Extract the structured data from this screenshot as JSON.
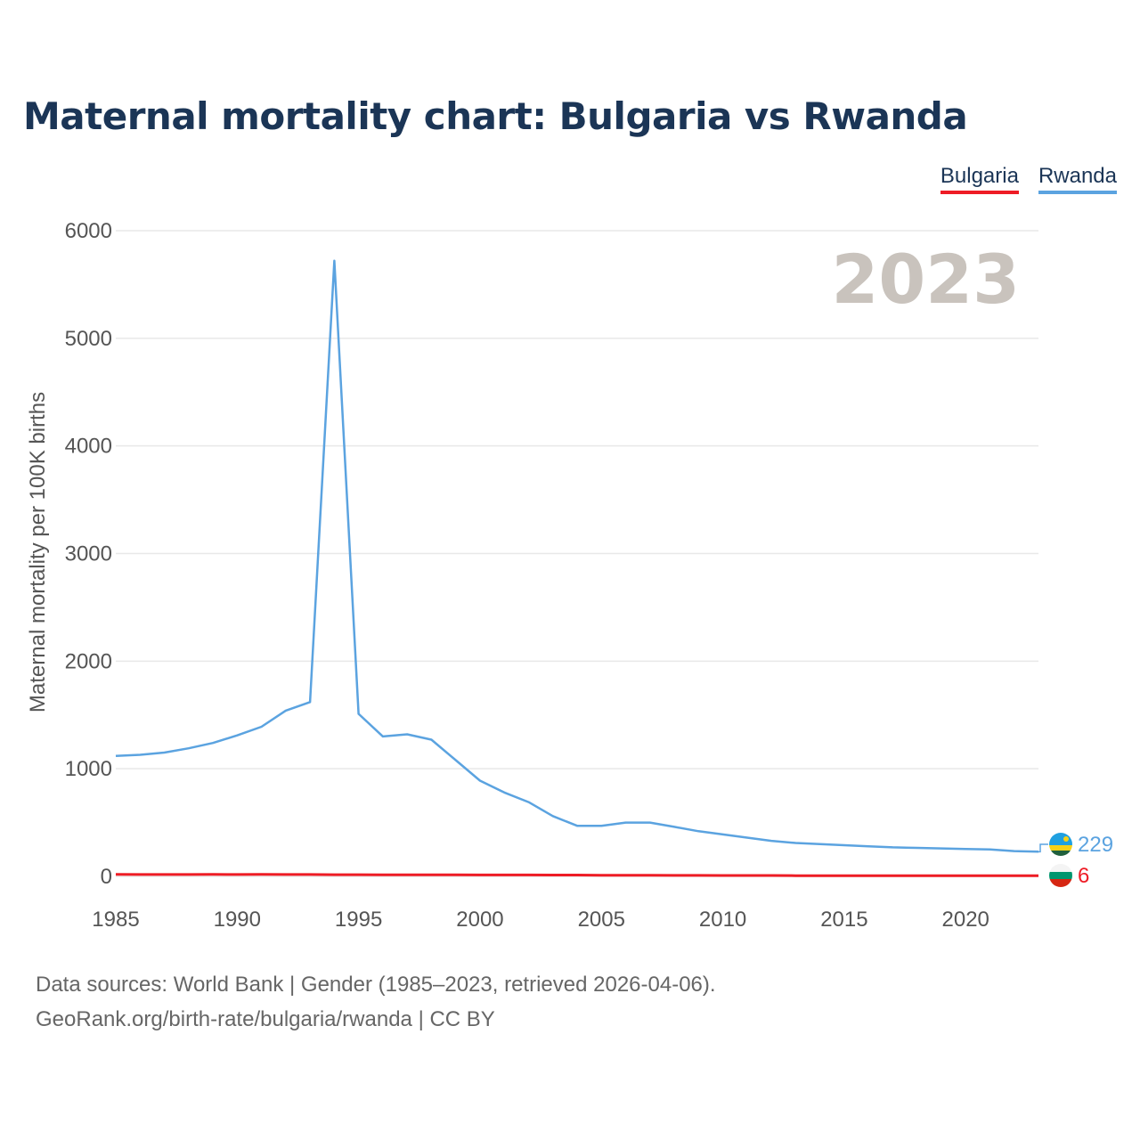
{
  "title": "Maternal mortality chart: Bulgaria vs Rwanda",
  "year_label": "2023",
  "footer": {
    "sources": "Data sources: World Bank | Gender (1985–2023, retrieved 2026-04-06).",
    "credit": "GeoRank.org/birth-rate/bulgaria/rwanda | CC BY"
  },
  "colors": {
    "bulgaria": "#ee1c25",
    "rwanda": "#5ba3e0",
    "grid": "#e8e8e8",
    "text": "#555555",
    "title": "#1b3556",
    "year": "#c9c3bd"
  },
  "chart_data": {
    "type": "line",
    "title": "Maternal mortality chart: Bulgaria vs Rwanda",
    "xlabel": "",
    "ylabel": "Maternal mortality per 100K births",
    "xlim": [
      1985,
      2023
    ],
    "ylim": [
      0,
      6000
    ],
    "xticks": [
      "1985",
      "1990",
      "1995",
      "2000",
      "2005",
      "2010",
      "2015",
      "2020"
    ],
    "yticks": [
      "0",
      "1000",
      "2000",
      "3000",
      "4000",
      "5000",
      "6000"
    ],
    "legend_position": "top-right",
    "x": [
      1985,
      1986,
      1987,
      1988,
      1989,
      1990,
      1991,
      1992,
      1993,
      1994,
      1995,
      1996,
      1997,
      1998,
      1999,
      2000,
      2001,
      2002,
      2003,
      2004,
      2005,
      2006,
      2007,
      2008,
      2009,
      2010,
      2011,
      2012,
      2013,
      2014,
      2015,
      2016,
      2017,
      2018,
      2019,
      2020,
      2021,
      2022,
      2023
    ],
    "series": [
      {
        "name": "Bulgaria",
        "values": [
          18,
          17,
          17,
          17,
          18,
          17,
          18,
          17,
          17,
          16,
          16,
          15,
          15,
          14,
          14,
          13,
          13,
          13,
          12,
          12,
          11,
          10,
          10,
          9,
          9,
          8,
          8,
          8,
          7,
          7,
          7,
          7,
          7,
          6,
          6,
          6,
          6,
          6,
          6
        ],
        "last_label": "6"
      },
      {
        "name": "Rwanda",
        "values": [
          1120,
          1130,
          1150,
          1190,
          1240,
          1310,
          1390,
          1540,
          1620,
          5720,
          1510,
          1300,
          1320,
          1270,
          1080,
          890,
          780,
          690,
          560,
          470,
          470,
          500,
          500,
          460,
          420,
          390,
          360,
          330,
          310,
          300,
          290,
          280,
          270,
          265,
          260,
          255,
          250,
          235,
          229
        ],
        "last_label": "229"
      }
    ]
  }
}
